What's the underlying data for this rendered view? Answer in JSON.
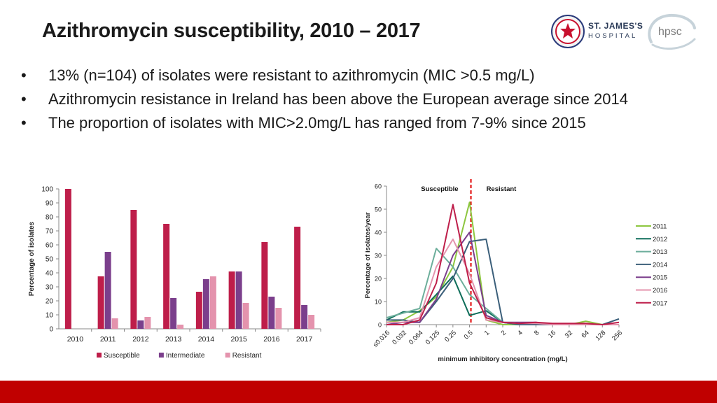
{
  "slide": {
    "title": "Azithromycin susceptibility, 2010 – 2017",
    "bullets": [
      "13% (n=104) of isolates were resistant to azithromycin (MIC >0.5 mg/L)",
      "Azithromycin resistance in Ireland has been above the European average since 2014",
      "The proportion of isolates with MIC>2.0mg/L has ranged from 7-9% since 2015"
    ],
    "bullet_char": "•",
    "logos": {
      "st_james_name": "ST. JAMES'S",
      "st_james_sub": "HOSPITAL",
      "hpsc": "hpsc",
      "icons": [
        "crest-icon",
        "hpsc-swoosh-icon"
      ]
    },
    "footer_color": "#c00000"
  },
  "chart_data": [
    {
      "type": "bar",
      "ylabel": "Percentage of isolates",
      "ylim": [
        0,
        100
      ],
      "yticks": [
        "0",
        "10",
        "20",
        "30",
        "40",
        "50",
        "60",
        "70",
        "80",
        "90",
        "100"
      ],
      "categories": [
        "2010",
        "2011",
        "2012",
        "2013",
        "2014",
        "2015",
        "2016",
        "2017"
      ],
      "grid": false,
      "legend_position": "bottom",
      "series": [
        {
          "name": "Susceptible",
          "color": "#be1e4a",
          "values": [
            100,
            37.5,
            85,
            75,
            26.5,
            41,
            62,
            73
          ]
        },
        {
          "name": "Intermediate",
          "color": "#7b3f8c",
          "values": [
            0,
            55,
            6,
            22,
            35.5,
            41,
            23,
            17
          ]
        },
        {
          "name": "Resistant",
          "color": "#e493ad",
          "values": [
            0,
            7.5,
            8.5,
            3,
            37.5,
            18.5,
            15,
            10
          ]
        }
      ]
    },
    {
      "type": "line",
      "xlabel": "minimum inhibitory concentration (mg/L)",
      "ylabel": "Percentage of isolates/year",
      "ylim": [
        0,
        60
      ],
      "yticks": [
        "0",
        "10",
        "20",
        "30",
        "40",
        "50",
        "60"
      ],
      "x": [
        "≤0.016",
        "0.032",
        "0.064",
        "0.125",
        "0.25",
        "0.5",
        "1",
        "2",
        "4",
        "8",
        "16",
        "32",
        "64",
        "128",
        "256"
      ],
      "annotations": [
        "Susceptible",
        "Resistant"
      ],
      "breakpoint_after": "0.5",
      "breakpoint_color": "#e00000",
      "legend_position": "right",
      "grid": false,
      "series": [
        {
          "name": "2011",
          "color": "#8dc63f",
          "values": [
            1,
            2,
            6,
            12,
            25,
            53,
            2,
            0,
            0,
            0,
            0,
            0,
            1.5,
            0,
            0
          ]
        },
        {
          "name": "2012",
          "color": "#0f6e5a",
          "values": [
            2,
            5.5,
            5.5,
            13,
            21,
            4,
            6,
            1,
            0,
            0,
            0,
            0,
            0,
            0,
            0
          ]
        },
        {
          "name": "2013",
          "color": "#6cae9b",
          "values": [
            3,
            5,
            7,
            33,
            25,
            13,
            7,
            1,
            0,
            0,
            0,
            0,
            0,
            0,
            0
          ]
        },
        {
          "name": "2014",
          "color": "#3b5f7a",
          "values": [
            2,
            2,
            1,
            10,
            20,
            36,
            37,
            1,
            0,
            0,
            0,
            0,
            0,
            0,
            2.5
          ]
        },
        {
          "name": "2015",
          "color": "#7b3f8c",
          "values": [
            0,
            1,
            1,
            11,
            30,
            40,
            4,
            1,
            1,
            1,
            0,
            0,
            0,
            0,
            0
          ]
        },
        {
          "name": "2016",
          "color": "#e493ad",
          "values": [
            1,
            1,
            3,
            25,
            37,
            22,
            2,
            1,
            0.5,
            0.5,
            0,
            0,
            0,
            0,
            0
          ]
        },
        {
          "name": "2017",
          "color": "#be1e4a",
          "values": [
            0,
            0,
            2,
            18,
            52,
            18,
            3,
            1,
            0.5,
            1,
            0.5,
            0.5,
            0.5,
            0,
            1
          ]
        }
      ]
    }
  ]
}
